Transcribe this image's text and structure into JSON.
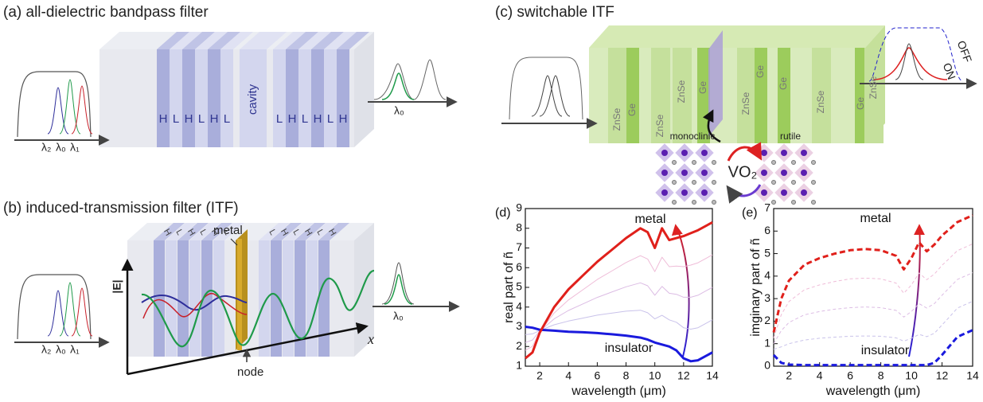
{
  "panel_a": {
    "label": "(a)  all-dielectric bandpass filter",
    "layers": [
      "H",
      "L",
      "H",
      "L",
      "H",
      "L",
      "cavity",
      "L",
      "H",
      "L",
      "H",
      "L",
      "H"
    ],
    "input_wavelengths": [
      "λ₂",
      "λ₀",
      "λ₁"
    ],
    "output_wavelength": "λ₀"
  },
  "panel_b": {
    "label": "(b)  induced-transmission filter (ITF)",
    "layers": [
      "H",
      "L",
      "H",
      "L",
      "H",
      "L",
      "L",
      "H",
      "L",
      "H",
      "L",
      "H"
    ],
    "metal": "metal",
    "node": "node",
    "field_axis": "|E|",
    "position_axis": "x",
    "input_wavelengths": [
      "λ₂",
      "λ₀",
      "λ₁"
    ],
    "output_wavelength": "λ₀"
  },
  "panel_c": {
    "label": "(c)  switchable ITF",
    "layers": [
      "ZnSe",
      "Ge",
      "ZnSe",
      "ZnSe",
      "Ge",
      "ZnSe",
      "Ge",
      "Ge",
      "ZnSe",
      "Ge",
      "ZnSe"
    ],
    "phase_1": "monoclinic",
    "phase_2": "rutile",
    "material": "VO₂",
    "on": "ON",
    "off": "OFF"
  },
  "chart_data": [
    {
      "type": "line",
      "title": "(d)",
      "ylabel": "real part of ñ",
      "xlabel": "wavelength (μm)",
      "x": [
        1,
        1.5,
        2,
        3,
        4,
        5,
        6,
        7,
        8,
        9,
        9.5,
        10,
        10.5,
        11,
        11.5,
        12,
        12.5,
        13,
        14
      ],
      "xlim": [
        1,
        14
      ],
      "xticks": [
        2,
        4,
        6,
        8,
        10,
        12,
        14
      ],
      "ylim": [
        1,
        9
      ],
      "yticks": [
        1,
        2,
        3,
        4,
        5,
        6,
        7,
        8,
        9
      ],
      "annotations": [
        {
          "text": "metal",
          "color": "#dd2222"
        },
        {
          "text": "insulator",
          "color": "#2222dd"
        }
      ],
      "series": [
        {
          "color": "#c9c2ea",
          "width": 1,
          "dashed": false,
          "values": [
            2.6,
            2.64,
            2.81,
            3.1,
            3.29,
            3.44,
            3.59,
            3.69,
            3.79,
            3.84,
            3.71,
            3.4,
            3.58,
            3.35,
            3.23,
            2.95,
            2.88,
            2.95,
            3.35
          ]
        },
        {
          "color": "#dcbce4",
          "width": 1,
          "dashed": false,
          "values": [
            2.2,
            2.33,
            2.78,
            3.4,
            3.83,
            4.16,
            4.49,
            4.76,
            5.03,
            5.23,
            5.08,
            4.6,
            5.05,
            4.7,
            4.65,
            4.5,
            4.5,
            4.6,
            5.0
          ]
        },
        {
          "color": "#efbcd8",
          "width": 1,
          "dashed": false,
          "values": [
            1.8,
            2.01,
            2.74,
            3.7,
            4.36,
            4.88,
            5.4,
            5.83,
            6.26,
            6.61,
            6.44,
            5.8,
            6.53,
            6.05,
            6.08,
            6.05,
            6.13,
            6.25,
            6.65
          ]
        },
        {
          "color": "#1a1add",
          "width": 3,
          "dashed": false,
          "values": [
            3.0,
            2.95,
            2.85,
            2.8,
            2.75,
            2.72,
            2.68,
            2.62,
            2.55,
            2.45,
            2.35,
            2.2,
            2.1,
            2.0,
            1.8,
            1.4,
            1.25,
            1.3,
            1.7
          ]
        },
        {
          "color": "#e0201b",
          "width": 3,
          "dashed": false,
          "values": [
            1.4,
            1.7,
            2.7,
            4.0,
            4.9,
            5.6,
            6.3,
            6.9,
            7.5,
            8.0,
            7.8,
            7.0,
            8.0,
            7.4,
            7.5,
            7.6,
            7.75,
            7.9,
            8.3
          ]
        }
      ]
    },
    {
      "type": "line",
      "title": "(e)",
      "ylabel": "imginary part of ñ",
      "xlabel": "wavelength (μm)",
      "x": [
        1,
        1.5,
        2,
        3,
        4,
        5,
        6,
        7,
        8,
        9,
        9.5,
        10,
        10.5,
        11,
        11.5,
        12,
        12.5,
        13,
        14
      ],
      "xlim": [
        1,
        14
      ],
      "xticks": [
        2,
        4,
        6,
        8,
        10,
        12,
        14
      ],
      "ylim": [
        0,
        7
      ],
      "yticks": [
        0,
        1,
        2,
        3,
        4,
        5,
        6,
        7
      ],
      "annotations": [
        {
          "text": "metal",
          "color": "#dd2222"
        },
        {
          "text": "insulator",
          "color": "#2222dd"
        }
      ],
      "series": [
        {
          "color": "#c9c2ea",
          "width": 1,
          "dashed": true,
          "values": [
            0.75,
            0.86,
            1.0,
            1.16,
            1.24,
            1.29,
            1.33,
            1.34,
            1.33,
            1.26,
            1.11,
            1.24,
            1.41,
            1.31,
            1.46,
            1.83,
            2.2,
            2.58,
            2.88
          ]
        },
        {
          "color": "#dcbce4",
          "width": 1,
          "dashed": true,
          "values": [
            1.0,
            1.58,
            1.94,
            2.28,
            2.43,
            2.53,
            2.6,
            2.63,
            2.6,
            2.48,
            2.18,
            2.43,
            2.78,
            2.58,
            2.78,
            3.15,
            3.5,
            3.85,
            4.15
          ]
        },
        {
          "color": "#efbcd8",
          "width": 1,
          "dashed": true,
          "values": [
            1.25,
            2.29,
            2.87,
            3.39,
            3.61,
            3.76,
            3.88,
            3.91,
            3.88,
            3.69,
            3.24,
            3.61,
            4.14,
            3.84,
            4.09,
            4.48,
            4.8,
            5.13,
            5.43
          ]
        },
        {
          "color": "#1a1add",
          "width": 3,
          "dashed": true,
          "values": [
            0.5,
            0.15,
            0.07,
            0.05,
            0.05,
            0.05,
            0.05,
            0.05,
            0.05,
            0.05,
            0.05,
            0.05,
            0.05,
            0.05,
            0.15,
            0.5,
            0.9,
            1.3,
            1.6
          ]
        },
        {
          "color": "#e0201b",
          "width": 3,
          "dashed": true,
          "values": [
            1.5,
            3.0,
            3.8,
            4.5,
            4.8,
            5.0,
            5.15,
            5.2,
            5.15,
            4.9,
            4.3,
            4.8,
            5.5,
            5.1,
            5.4,
            5.8,
            6.1,
            6.4,
            6.7
          ]
        }
      ]
    }
  ]
}
